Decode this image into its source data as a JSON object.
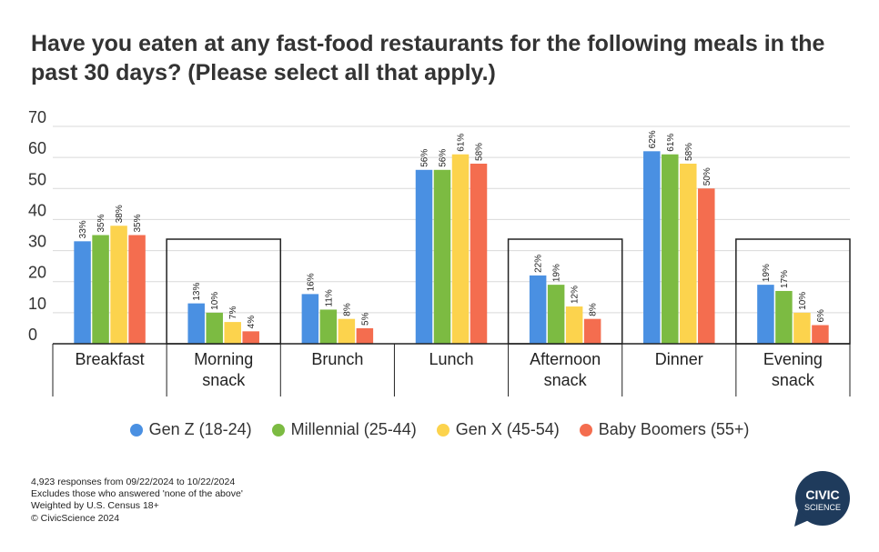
{
  "title": "Have you eaten at any fast-food restaurants for the following meals in the past 30 days? (Please select all that apply.)",
  "chart_data": {
    "type": "bar",
    "categories": [
      [
        "Breakfast"
      ],
      [
        "Morning",
        "snack"
      ],
      [
        "Brunch"
      ],
      [
        "Lunch"
      ],
      [
        "Afternoon",
        "snack"
      ],
      [
        "Dinner"
      ],
      [
        "Evening",
        "snack"
      ]
    ],
    "boxed_categories": [
      1,
      4,
      6
    ],
    "series": [
      {
        "name": "Gen Z (18-24)",
        "color": "#4a90e2",
        "values": [
          33,
          13,
          16,
          56,
          22,
          62,
          19
        ],
        "labels": [
          "33%",
          "13%",
          "16%",
          "56%",
          "22%",
          "62%",
          "19%"
        ]
      },
      {
        "name": "Millennial (25-44)",
        "color": "#7cbb42",
        "values": [
          35,
          10,
          11,
          56,
          19,
          61,
          17
        ],
        "labels": [
          "35%",
          "10%",
          "11%",
          "56%",
          "19%",
          "61%",
          "17%"
        ]
      },
      {
        "name": "Gen X (45-54)",
        "color": "#fcd34d",
        "values": [
          38,
          7,
          8,
          61,
          12,
          58,
          10
        ],
        "labels": [
          "38%",
          "7%",
          "8%",
          "61%",
          "12%",
          "58%",
          "10%"
        ]
      },
      {
        "name": "Baby Boomers (55+)",
        "color": "#f46d4f",
        "values": [
          35,
          4,
          5,
          58,
          8,
          50,
          6
        ],
        "labels": [
          "35%",
          "4%",
          "5%",
          "58%",
          "8%",
          "50%",
          "6%"
        ]
      }
    ],
    "yticks": [
      0,
      10,
      20,
      30,
      40,
      50,
      60,
      70
    ],
    "ylim": [
      0,
      70
    ],
    "grid": true,
    "legend_position": "bottom"
  },
  "footnotes": [
    "4,923 responses from 09/22/2024 to 10/22/2024",
    "Excludes those who answered 'none of the above'",
    "Weighted by U.S. Census 18+",
    "© CivicScience 2024"
  ],
  "logo": {
    "line1": "CIVIC",
    "line2": "SCIENCE",
    "color": "#1f3b5c"
  }
}
